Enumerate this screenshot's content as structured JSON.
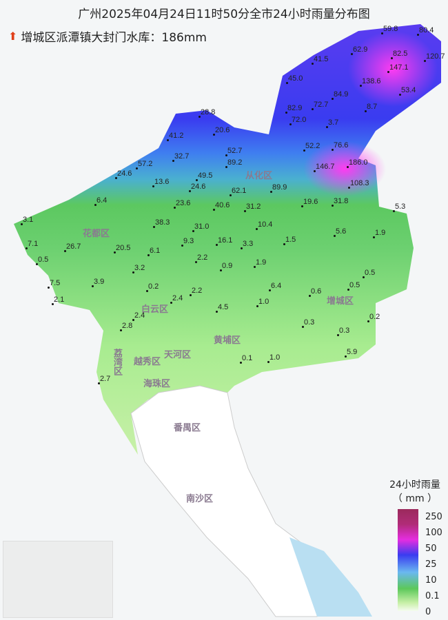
{
  "title": "广州2025年04月24日11时50分全市24小时雨量分布图",
  "max_station": {
    "icon": "red-up-arrow-icon",
    "text": "增城区派潭镇大封门水库：186mm"
  },
  "districts": [
    "从化区",
    "花都区",
    "白云区",
    "增城区",
    "黄埔区",
    "天河区",
    "越秀区",
    "荔湾区",
    "海珠区",
    "番禺区",
    "南沙区"
  ],
  "stations": [
    "59.8",
    "80.4",
    "62.9",
    "41.5",
    "82.5",
    "120.7",
    "147.1",
    "45.0",
    "138.6",
    "84.9",
    "53.4",
    "82.9",
    "72.7",
    "8.7",
    "72.0",
    "3.7",
    "28.8",
    "41.2",
    "20.6",
    "32.7",
    "52.7",
    "57.2",
    "89.2",
    "52.2",
    "76.6",
    "24.6",
    "49.5",
    "146.7",
    "186.0",
    "13.6",
    "24.6",
    "62.1",
    "89.9",
    "108.3",
    "6.4",
    "23.6",
    "40.6",
    "31.2",
    "19.6",
    "31.8",
    "5.3",
    "3.1",
    "38.3",
    "31.0",
    "10.4",
    "5.6",
    "1.9",
    "7.1",
    "26.7",
    "20.5",
    "6.1",
    "9.3",
    "16.1",
    "3.3",
    "1.5",
    "0.5",
    "2.2",
    "0.9",
    "1.9",
    "0.5",
    "7.5",
    "3.9",
    "3.2",
    "0.2",
    "2.2",
    "2.4",
    "6.4",
    "0.6",
    "0.5",
    "2.1",
    "4.5",
    "1.0",
    "2.4",
    "0.2",
    "2.8",
    "0.3",
    "0.3",
    "5.9",
    "0.1",
    "1.0",
    "2.7"
  ],
  "legend": {
    "title": "24小时雨量",
    "unit": "（ mm ）",
    "labels": [
      "250",
      "100",
      "50",
      "25",
      "10",
      "0.1",
      "0"
    ],
    "colors": [
      "#9b2a5c",
      "#e52de0",
      "#3a3cf0",
      "#6ab8f0",
      "#5cc85a",
      "#c8f0a8",
      "#f5fbf0"
    ]
  }
}
